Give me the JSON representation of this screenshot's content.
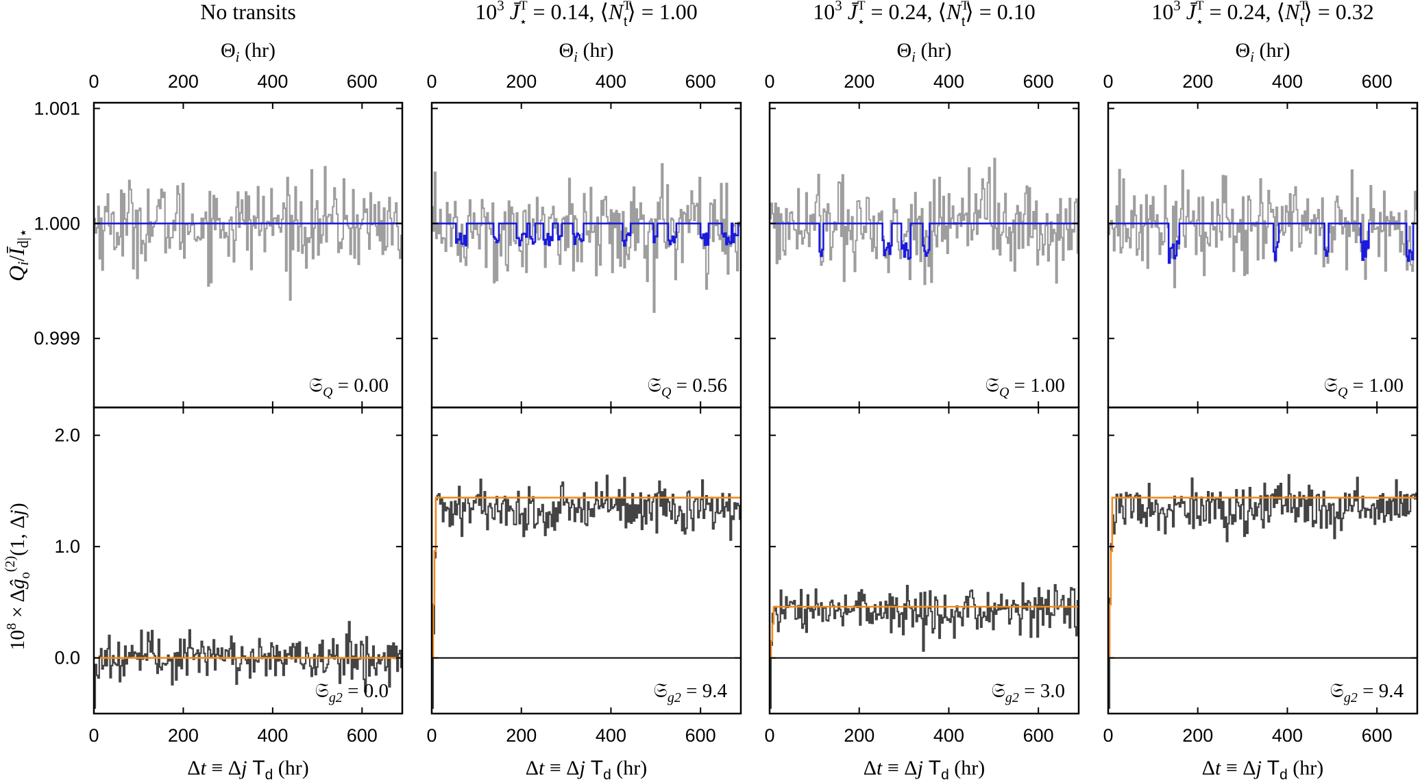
{
  "figure": {
    "top_axis_label": "Θ_i (hr)",
    "bottom_axis_label": "Δt ≡ Δj T_d (hr)",
    "y_label_top": "Q_i / Ī_d|⋆",
    "y_label_bottom": "10^8 × Δĝ_o^(2)(1, Δj)"
  },
  "colors": {
    "data_gray": "#9e9e9e",
    "transit_blue": "#1a1adf",
    "g2_dark": "#444444",
    "model_orange": "#f28c1e",
    "axis": "#000000"
  },
  "chart_data": [
    {
      "type": "line",
      "title": "No transits",
      "top": {
        "ylabel": "Q_i/Ī_d|⋆",
        "ylim": [
          0.9984,
          1.00105
        ],
        "yticks": [
          "0.999",
          "1.000",
          "1.001"
        ],
        "ytick_values": [
          0.999,
          1.0,
          1.001
        ],
        "stat_label": "𝔖_Q = 0.00",
        "transit_depth": 0.0,
        "transit_rate": 0.0
      },
      "bottom": {
        "ylabel": "10^8 × Δĝ_o^(2)(1, Δj)",
        "ylim": [
          -0.5,
          2.25
        ],
        "yticks": [
          "0.0",
          "1.0",
          "2.0"
        ],
        "ytick_values": [
          0.0,
          1.0,
          2.0
        ],
        "model_level": 0.0,
        "stat_label": "𝔖_g2 = 0.0"
      },
      "xlim": [
        0,
        690
      ],
      "xticks": [
        "0",
        "200",
        "400",
        "600"
      ],
      "xtick_values": [
        0,
        200,
        400,
        600
      ]
    },
    {
      "type": "line",
      "title": "10³ J̄⋆ᵀ = 0.14, ⟨N_tᵀ⟩ = 1.00",
      "top": {
        "ylim": [
          0.9984,
          1.00105
        ],
        "yticks": [
          "0.999",
          "1.000",
          "1.001"
        ],
        "ytick_values": [
          0.999,
          1.0,
          1.001
        ],
        "stat_label": "𝔖_Q = 0.56",
        "transit_depth": 0.00014,
        "transit_rate": 1.0
      },
      "bottom": {
        "ylim": [
          -0.5,
          2.25
        ],
        "yticks": [
          "0.0",
          "1.0",
          "2.0"
        ],
        "ytick_values": [
          0.0,
          1.0,
          2.0
        ],
        "model_level": 1.44,
        "stat_label": "𝔖_g2 = 9.4"
      },
      "xlim": [
        0,
        690
      ],
      "xticks": [
        "0",
        "200",
        "400",
        "600"
      ],
      "xtick_values": [
        0,
        200,
        400,
        600
      ]
    },
    {
      "type": "line",
      "title": "10³ J̄⋆ᵀ = 0.24, ⟨N_tᵀ⟩ = 0.10",
      "top": {
        "ylim": [
          0.9984,
          1.00105
        ],
        "yticks": [
          "0.999",
          "1.000",
          "1.001"
        ],
        "ytick_values": [
          0.999,
          1.0,
          1.001
        ],
        "stat_label": "𝔖_Q = 1.00",
        "transit_depth": 0.00024,
        "transit_rate": 0.1
      },
      "bottom": {
        "ylim": [
          -0.5,
          2.25
        ],
        "yticks": [
          "0.0",
          "1.0",
          "2.0"
        ],
        "ytick_values": [
          0.0,
          1.0,
          2.0
        ],
        "model_level": 0.46,
        "stat_label": "𝔖_g2 = 3.0"
      },
      "xlim": [
        0,
        690
      ],
      "xticks": [
        "0",
        "200",
        "400",
        "600"
      ],
      "xtick_values": [
        0,
        200,
        400,
        600
      ]
    },
    {
      "type": "line",
      "title": "10³ J̄⋆ᵀ = 0.24, ⟨N_tᵀ⟩ = 0.32",
      "top": {
        "ylim": [
          0.9984,
          1.00105
        ],
        "yticks": [
          "0.999",
          "1.000",
          "1.001"
        ],
        "ytick_values": [
          0.999,
          1.0,
          1.001
        ],
        "stat_label": "𝔖_Q = 1.00",
        "transit_depth": 0.00024,
        "transit_rate": 0.32
      },
      "bottom": {
        "ylim": [
          -0.5,
          2.25
        ],
        "yticks": [
          "0.0",
          "1.0",
          "2.0"
        ],
        "ytick_values": [
          0.0,
          1.0,
          2.0
        ],
        "model_level": 1.44,
        "stat_label": "𝔖_g2 = 9.4"
      },
      "xlim": [
        0,
        690
      ],
      "xticks": [
        "0",
        "200",
        "400",
        "600"
      ],
      "xtick_values": [
        0,
        200,
        400,
        600
      ]
    }
  ]
}
